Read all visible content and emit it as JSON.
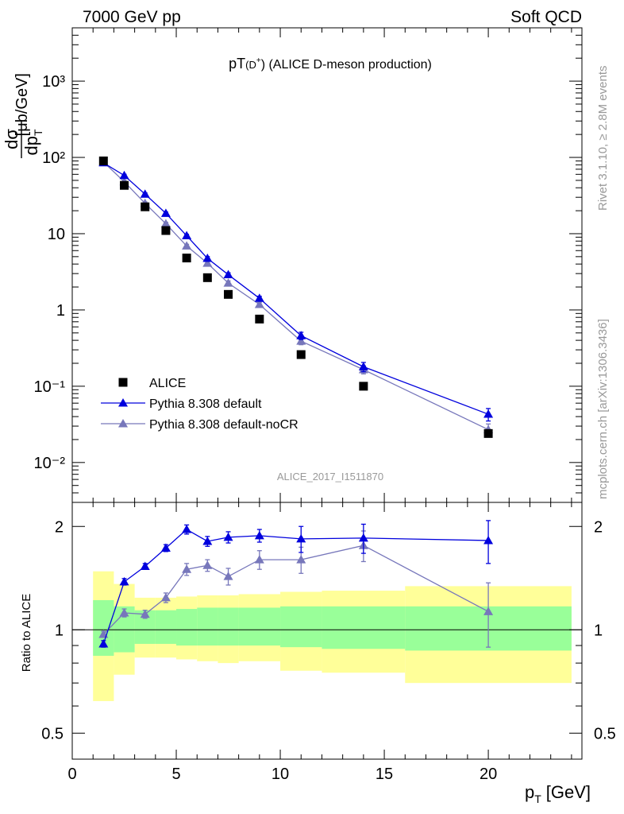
{
  "header": {
    "left": "7000 GeV pp",
    "right": "Soft QCD"
  },
  "side": {
    "rivet": "Rivet 3.1.10, ≥ 2.8M events",
    "mcplots": "mcplots.cern.ch [arXiv:1306.3436]"
  },
  "chart_data": [
    {
      "type": "scatter",
      "title_main": "pT",
      "title_sub": "(D",
      "title_sup": "+",
      "title_tail": ") (ALICE D-meson production)",
      "ylabel": "dσ/dp_T [μb/GeV]",
      "ylabel_num": "dσ",
      "ylabel_den": "dp",
      "ylabel_den_sub": "T",
      "ylabel_unit": "[μb/GeV]",
      "yscale": "log",
      "ylim": [
        0.003,
        5000
      ],
      "xlim": [
        0,
        24.5
      ],
      "ytick_labels": [
        "10⁻²",
        "10⁻¹",
        "1",
        "10",
        "10²",
        "10³"
      ],
      "ytick_values": [
        0.01,
        0.1,
        1,
        10,
        100,
        1000
      ],
      "analysis_label": "ALICE_2017_I1511870",
      "legend_position": "bottom-left",
      "series": [
        {
          "name": "ALICE",
          "color": "#000000",
          "marker": "square",
          "x": [
            1.5,
            2.5,
            3.5,
            4.5,
            5.5,
            6.5,
            7.5,
            9,
            11,
            14,
            20
          ],
          "y": [
            90,
            43,
            22.5,
            11,
            4.8,
            2.65,
            1.6,
            0.76,
            0.26,
            0.1,
            0.024
          ]
        },
        {
          "name": "Pythia 8.308 default",
          "color": "#0000dd",
          "marker": "triangle",
          "x": [
            1.5,
            2.5,
            3.5,
            4.5,
            5.5,
            6.5,
            7.5,
            9,
            11,
            14,
            20
          ],
          "y": [
            85,
            58,
            33,
            18.5,
            9.4,
            4.75,
            2.9,
            1.42,
            0.46,
            0.18,
            0.043
          ],
          "err": [
            3,
            2,
            1.2,
            0.7,
            0.4,
            0.25,
            0.17,
            0.09,
            0.05,
            0.025,
            0.008
          ]
        },
        {
          "name": "Pythia 8.308 default-noCR",
          "color": "#7777bb",
          "marker": "triangle",
          "x": [
            1.5,
            2.5,
            3.5,
            4.5,
            5.5,
            6.5,
            7.5,
            9,
            11,
            14,
            20
          ],
          "y": [
            87,
            48,
            25,
            13.5,
            6.9,
            4.1,
            2.25,
            1.18,
            0.39,
            0.165,
            0.027
          ],
          "err": [
            3,
            2,
            1,
            0.6,
            0.35,
            0.22,
            0.15,
            0.08,
            0.04,
            0.02,
            0.005
          ]
        }
      ]
    },
    {
      "type": "scatter",
      "ylabel": "Ratio to ALICE",
      "yscale": "log",
      "ylim": [
        0.42,
        2.35
      ],
      "xlim": [
        0,
        24.5
      ],
      "xlabel": "p_T [GeV]",
      "xlabel_main": "p",
      "xlabel_sub": "T",
      "xlabel_unit": "[GeV]",
      "xtick_labels": [
        "0",
        "5",
        "10",
        "15",
        "20"
      ],
      "xtick_values": [
        0,
        5,
        10,
        15,
        20
      ],
      "ytick_labels": [
        "0.5",
        "1",
        "2"
      ],
      "ytick_values": [
        0.5,
        1,
        2
      ],
      "bands": [
        {
          "x0": 1,
          "x1": 2,
          "stat_lo": 0.84,
          "stat_hi": 1.22,
          "tot_lo": 0.62,
          "tot_hi": 1.48
        },
        {
          "x0": 2,
          "x1": 3,
          "stat_lo": 0.86,
          "stat_hi": 1.17,
          "tot_lo": 0.74,
          "tot_hi": 1.36
        },
        {
          "x0": 3,
          "x1": 4,
          "stat_lo": 0.91,
          "stat_hi": 1.14,
          "tot_lo": 0.83,
          "tot_hi": 1.24
        },
        {
          "x0": 4,
          "x1": 5,
          "stat_lo": 0.91,
          "stat_hi": 1.14,
          "tot_lo": 0.83,
          "tot_hi": 1.24
        },
        {
          "x0": 5,
          "x1": 6,
          "stat_lo": 0.9,
          "stat_hi": 1.15,
          "tot_lo": 0.82,
          "tot_hi": 1.25
        },
        {
          "x0": 6,
          "x1": 7,
          "stat_lo": 0.9,
          "stat_hi": 1.16,
          "tot_lo": 0.81,
          "tot_hi": 1.26
        },
        {
          "x0": 7,
          "x1": 8,
          "stat_lo": 0.9,
          "stat_hi": 1.16,
          "tot_lo": 0.8,
          "tot_hi": 1.26
        },
        {
          "x0": 8,
          "x1": 10,
          "stat_lo": 0.9,
          "stat_hi": 1.16,
          "tot_lo": 0.81,
          "tot_hi": 1.27
        },
        {
          "x0": 10,
          "x1": 12,
          "stat_lo": 0.89,
          "stat_hi": 1.17,
          "tot_lo": 0.76,
          "tot_hi": 1.29
        },
        {
          "x0": 12,
          "x1": 16,
          "stat_lo": 0.88,
          "stat_hi": 1.17,
          "tot_lo": 0.75,
          "tot_hi": 1.3
        },
        {
          "x0": 16,
          "x1": 24,
          "stat_lo": 0.87,
          "stat_hi": 1.17,
          "tot_lo": 0.7,
          "tot_hi": 1.34
        }
      ],
      "band_colors": {
        "stat": "#99ff99",
        "total": "#ffff99"
      },
      "series": [
        {
          "name": "Pythia 8.308 default",
          "color": "#0000dd",
          "x": [
            1.5,
            2.5,
            3.5,
            4.5,
            5.5,
            6.5,
            7.5,
            9,
            11,
            14,
            20
          ],
          "y": [
            0.91,
            1.38,
            1.53,
            1.73,
            1.96,
            1.81,
            1.86,
            1.88,
            1.84,
            1.85,
            1.82
          ],
          "err": [
            0.02,
            0.03,
            0.03,
            0.04,
            0.06,
            0.06,
            0.07,
            0.08,
            0.16,
            0.18,
            0.26
          ]
        },
        {
          "name": "Pythia 8.308 default-noCR",
          "color": "#7777bb",
          "x": [
            1.5,
            2.5,
            3.5,
            4.5,
            5.5,
            6.5,
            7.5,
            9,
            11,
            14,
            20
          ],
          "y": [
            0.97,
            1.12,
            1.11,
            1.24,
            1.5,
            1.54,
            1.43,
            1.6,
            1.6,
            1.76,
            1.13
          ],
          "err": [
            0.02,
            0.03,
            0.03,
            0.04,
            0.06,
            0.06,
            0.08,
            0.1,
            0.14,
            0.18,
            0.24
          ]
        }
      ]
    }
  ]
}
